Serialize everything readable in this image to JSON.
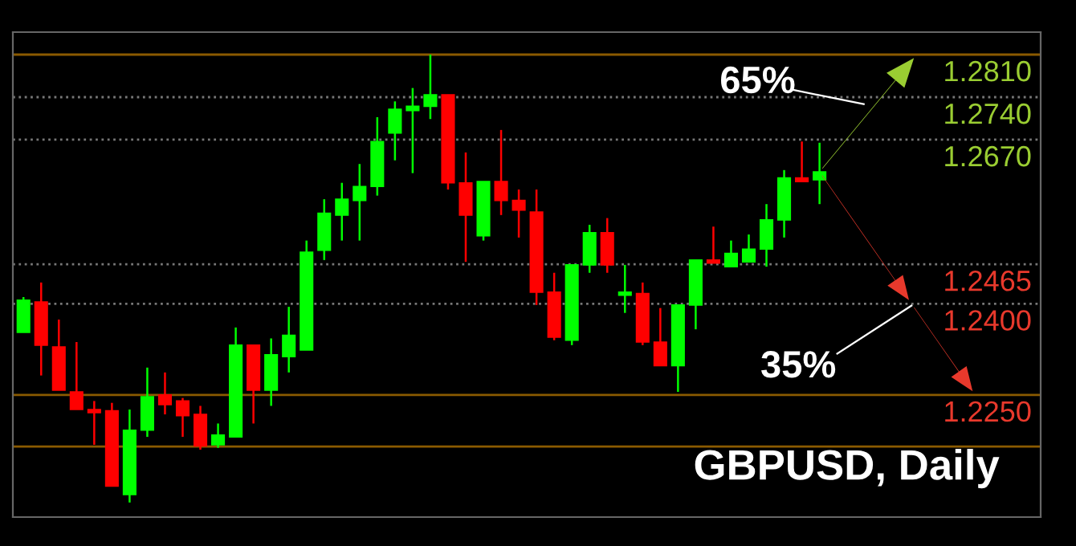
{
  "chart_data": {
    "type": "candlestick",
    "categories": [
      null,
      null,
      null,
      null,
      null,
      null,
      null,
      null,
      null,
      null,
      null,
      null,
      null,
      null,
      null,
      null,
      null,
      null,
      null,
      null,
      null,
      null,
      null,
      null,
      null,
      null,
      null,
      null,
      null,
      null,
      null,
      null,
      null,
      null,
      null,
      null,
      null,
      null,
      null,
      null,
      null,
      null,
      null,
      null,
      null,
      null
    ],
    "ohlc": [
      [
        1.2353,
        1.2411,
        1.2353,
        1.2406
      ],
      [
        1.2403,
        1.2435,
        1.2282,
        1.2332
      ],
      [
        1.2329,
        1.2374,
        1.2258,
        1.2258
      ],
      [
        1.2255,
        1.2337,
        1.2226,
        1.2226
      ],
      [
        1.2226,
        1.224,
        1.2168,
        1.2221
      ],
      [
        1.2224,
        1.2237,
        1.21,
        1.21
      ],
      [
        1.2086,
        1.2226,
        1.2073,
        1.2192
      ],
      [
        1.2192,
        1.2295,
        1.2181,
        1.2247
      ],
      [
        1.225,
        1.2287,
        1.2218,
        1.2234
      ],
      [
        1.224,
        1.2245,
        1.2181,
        1.2216
      ],
      [
        1.2218,
        1.2232,
        1.216,
        1.2166
      ],
      [
        1.2168,
        1.2203,
        1.2163,
        1.2184
      ],
      [
        1.2181,
        1.2361,
        1.2181,
        1.2332
      ],
      [
        1.2332,
        1.2332,
        1.2203,
        1.2258
      ],
      [
        1.2258,
        1.2343,
        1.2232,
        1.2316
      ],
      [
        1.2313,
        1.2395,
        1.2287,
        1.2348
      ],
      [
        1.2324,
        1.2504,
        1.2324,
        1.2485
      ],
      [
        1.2488,
        1.2572,
        1.2472,
        1.2549
      ],
      [
        1.2546,
        1.2599,
        1.2504,
        1.2572
      ],
      [
        1.257,
        1.263,
        1.2504,
        1.2593
      ],
      [
        1.2593,
        1.2707,
        1.2578,
        1.2667
      ],
      [
        1.2681,
        1.2733,
        1.2636,
        1.272
      ],
      [
        1.2718,
        1.2755,
        1.2615,
        1.2725
      ],
      [
        1.2725,
        1.281,
        1.2704,
        1.2744
      ],
      [
        1.2744,
        1.2744,
        1.2588,
        1.2599
      ],
      [
        1.2599,
        1.2649,
        1.2469,
        1.2546
      ],
      [
        1.2512,
        1.2601,
        1.2504,
        1.2601
      ],
      [
        1.2601,
        1.2686,
        1.2546,
        1.257
      ],
      [
        1.257,
        1.2588,
        1.2509,
        1.2554
      ],
      [
        1.2551,
        1.2588,
        1.2398,
        1.2419
      ],
      [
        1.2419,
        1.2451,
        1.234,
        1.2345
      ],
      [
        1.234,
        1.2464,
        1.2332,
        1.2464
      ],
      [
        1.2464,
        1.253,
        1.2451,
        1.2517
      ],
      [
        1.2517,
        1.2541,
        1.2451,
        1.2464
      ],
      [
        1.2414,
        1.2464,
        1.2385,
        1.2419
      ],
      [
        1.2417,
        1.2435,
        1.2332,
        1.2337
      ],
      [
        1.2337,
        1.2393,
        1.2298,
        1.2298
      ],
      [
        1.2298,
        1.2398,
        1.2255,
        1.2398
      ],
      [
        1.2398,
        1.2472,
        1.2358,
        1.2472
      ],
      [
        1.2472,
        1.2527,
        1.2467,
        1.2467
      ],
      [
        1.2461,
        1.2504,
        1.2461,
        1.2483
      ],
      [
        1.2469,
        1.2514,
        1.2469,
        1.249
      ],
      [
        1.249,
        1.2564,
        1.2461,
        1.2538
      ],
      [
        1.2538,
        1.262,
        1.2509,
        1.2607
      ],
      [
        1.2607,
        1.2667,
        1.2601,
        1.2601
      ],
      [
        1.2604,
        1.2665,
        1.2564,
        1.2617
      ]
    ],
    "colors": [
      "#00ff00",
      "#ff0000",
      "#ff0000",
      "#ff0000",
      "#ff0000",
      "#ff0000",
      "#00ff00",
      "#00ff00",
      "#ff0000",
      "#ff0000",
      "#ff0000",
      "#00ff00",
      "#00ff00",
      "#ff0000",
      "#00ff00",
      "#00ff00",
      "#00ff00",
      "#00ff00",
      "#00ff00",
      "#00ff00",
      "#00ff00",
      "#00ff00",
      "#00ff00",
      "#00ff00",
      "#ff0000",
      "#ff0000",
      "#00ff00",
      "#ff0000",
      "#ff0000",
      "#ff0000",
      "#ff0000",
      "#00ff00",
      "#00ff00",
      "#ff0000",
      "#00ff00",
      "#ff0000",
      "#ff0000",
      "#00ff00",
      "#00ff00",
      "#ff0000",
      "#00ff00",
      "#00ff00",
      "#00ff00",
      "#00ff00",
      "#ff0000",
      "#00ff00"
    ],
    "ylim": [
      1.2049,
      1.2847
    ],
    "yticks": [
      {
        "value": 1.225,
        "label": "1.2250"
      },
      {
        "value": 1.24,
        "label": "1.2400"
      },
      {
        "value": 1.2465,
        "label": "1.2465"
      },
      {
        "value": 1.267,
        "label": "1.2670"
      },
      {
        "value": 1.274,
        "label": "1.2740"
      },
      {
        "value": 1.281,
        "label": "1.2810"
      }
    ],
    "tick_labels": "y",
    "grid": false,
    "ref_lines": [
      {
        "axis": "y",
        "value": 1.281,
        "color": "#8a5a00",
        "line_style": "solid"
      },
      {
        "axis": "y",
        "value": 1.274,
        "color": "#777777",
        "line_style": "dotted"
      },
      {
        "axis": "y",
        "value": 1.267,
        "color": "#777777",
        "line_style": "dotted"
      },
      {
        "axis": "y",
        "value": 1.2465,
        "color": "#777777",
        "line_style": "dotted"
      },
      {
        "axis": "y",
        "value": 1.24,
        "color": "#777777",
        "line_style": "dotted"
      },
      {
        "axis": "y",
        "value": 1.225,
        "color": "#8a5a00",
        "line_style": "solid"
      },
      {
        "axis": "y",
        "value": 1.2165,
        "color": "#8a5a00",
        "line_style": "solid"
      }
    ],
    "annotations": [
      "65%",
      "35%",
      "GBPUSD, Daily"
    ]
  }
}
